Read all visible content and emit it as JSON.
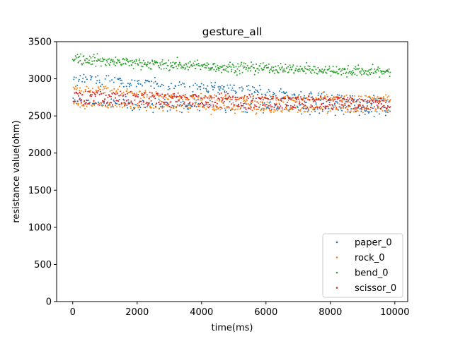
{
  "chart_data": {
    "type": "scatter",
    "title": "gesture_all",
    "xlabel": "time(ms)",
    "ylabel": "resistance value(ohm)",
    "xlim": [
      -500,
      10400
    ],
    "ylim": [
      0,
      3500
    ],
    "xticks": [
      0,
      2000,
      4000,
      6000,
      8000,
      10000
    ],
    "yticks": [
      0,
      500,
      1000,
      1500,
      2000,
      2500,
      3000,
      3500
    ],
    "grid": false,
    "legend_position": "lower right",
    "series": [
      {
        "name": "paper_0",
        "color": "#1f77b4",
        "trend": [
          [
            0,
            3000
          ],
          [
            1000,
            2980
          ],
          [
            2000,
            2950
          ],
          [
            3000,
            2920
          ],
          [
            4000,
            2900
          ],
          [
            5000,
            2860
          ],
          [
            6000,
            2800
          ],
          [
            7000,
            2760
          ],
          [
            8000,
            2730
          ],
          [
            9000,
            2700
          ],
          [
            9800,
            2680
          ]
        ],
        "secondary_band": [
          [
            0,
            2680
          ],
          [
            5000,
            2620
          ],
          [
            9800,
            2580
          ]
        ],
        "spread": 190
      },
      {
        "name": "rock_0",
        "color": "#ff7f0e",
        "trend": [
          [
            0,
            2880
          ],
          [
            1000,
            2850
          ],
          [
            2000,
            2800
          ],
          [
            3000,
            2760
          ],
          [
            4000,
            2740
          ],
          [
            5000,
            2720
          ],
          [
            6000,
            2720
          ],
          [
            7000,
            2730
          ],
          [
            8000,
            2740
          ],
          [
            9000,
            2740
          ],
          [
            9800,
            2740
          ]
        ],
        "secondary_band": [
          [
            0,
            2650
          ],
          [
            5000,
            2600
          ],
          [
            9800,
            2580
          ]
        ],
        "spread": 130
      },
      {
        "name": "bend_0",
        "color": "#2ca02c",
        "trend": [
          [
            0,
            3280
          ],
          [
            1000,
            3240
          ],
          [
            2000,
            3210
          ],
          [
            3000,
            3190
          ],
          [
            4000,
            3170
          ],
          [
            5000,
            3150
          ],
          [
            6000,
            3140
          ],
          [
            7000,
            3130
          ],
          [
            8000,
            3110
          ],
          [
            9000,
            3100
          ],
          [
            9800,
            3100
          ]
        ],
        "spread": 170
      },
      {
        "name": "scissor_0",
        "color": "#d62728",
        "trend": [
          [
            0,
            2800
          ],
          [
            1000,
            2790
          ],
          [
            2000,
            2780
          ],
          [
            3000,
            2770
          ],
          [
            4000,
            2760
          ],
          [
            5000,
            2750
          ],
          [
            6000,
            2740
          ],
          [
            7000,
            2730
          ],
          [
            8000,
            2720
          ],
          [
            9000,
            2710
          ],
          [
            9800,
            2700
          ]
        ],
        "secondary_band": [
          [
            0,
            2700
          ],
          [
            5000,
            2640
          ],
          [
            9800,
            2620
          ]
        ],
        "spread": 110
      }
    ]
  }
}
